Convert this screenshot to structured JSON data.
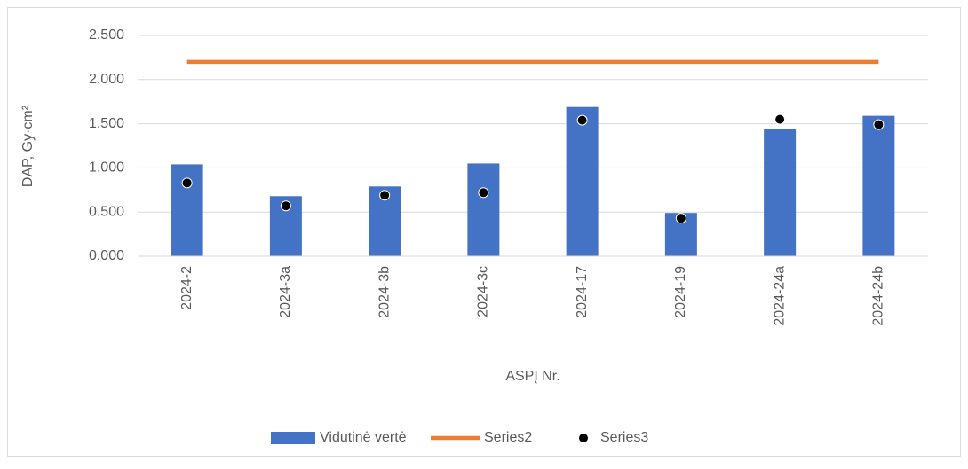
{
  "chart_data": {
    "type": "combo",
    "x_label": "ASPĮ Nr.",
    "y_label": "DAP,  Gy·cm²",
    "categories": [
      "2024-2",
      "2024-3a",
      "2024-3b",
      "2024-3c",
      "2024-17",
      "2024-19",
      "2024-24a",
      "2024-24b"
    ],
    "series": [
      {
        "name": "Vidutinė vertė",
        "type": "bar",
        "color": "#4472c4",
        "values": [
          1.04,
          0.68,
          0.79,
          1.05,
          1.69,
          0.49,
          1.44,
          1.59
        ]
      },
      {
        "name": "Series2",
        "type": "line",
        "color": "#ed7d31",
        "values": [
          2.2,
          2.2,
          2.2,
          2.2,
          2.2,
          2.2,
          2.2,
          2.2
        ]
      },
      {
        "name": "Series3",
        "type": "scatter",
        "color": "#000000",
        "values": [
          0.83,
          0.57,
          0.69,
          0.72,
          1.54,
          0.43,
          1.55,
          1.49
        ]
      }
    ],
    "ylim": [
      0,
      2.5
    ],
    "yticks": [
      {
        "value": 0,
        "label": "0.000"
      },
      {
        "value": 0.5,
        "label": "0.500"
      },
      {
        "value": 1,
        "label": "1.000"
      },
      {
        "value": 1.5,
        "label": "1.500"
      },
      {
        "value": 2,
        "label": "2.000"
      },
      {
        "value": 2.5,
        "label": "2.500"
      }
    ],
    "grid": true,
    "legend": "bottom"
  }
}
